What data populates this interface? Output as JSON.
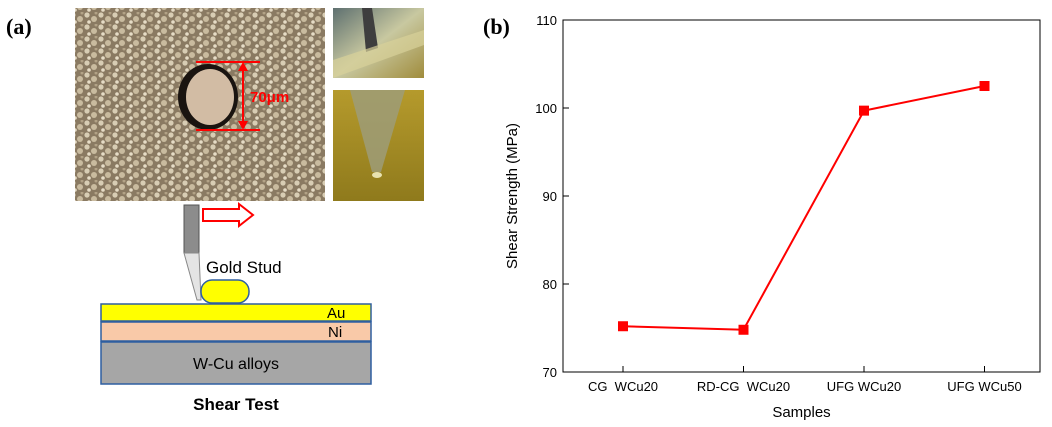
{
  "panel_a": {
    "label": "(a)",
    "measure_label": "70μm",
    "stud_label": "Gold Stud",
    "layers": [
      "Au",
      "Ni",
      "W-Cu alloys"
    ],
    "caption": "Shear Test",
    "colors": {
      "au": "#ffff00",
      "ni": "#f9c9a8",
      "base": "#a6a6a6",
      "measure": "#ff0000",
      "tool": "#8c8c8c"
    }
  },
  "panel_b": {
    "label": "(b)"
  },
  "chart_data": {
    "type": "line",
    "categories": [
      "CG  WCu20",
      "RD-CG  WCu20",
      "UFG WCu20",
      "UFG WCu50"
    ],
    "series": [
      {
        "name": "Shear Strength",
        "values": [
          75.2,
          74.8,
          99.7,
          102.5
        ],
        "color": "#ff0000"
      }
    ],
    "title": "",
    "xlabel": "Samples",
    "ylabel": "Shear Strength (MPa)",
    "ylim": [
      70,
      110
    ],
    "yticks": [
      70,
      80,
      90,
      100,
      110
    ],
    "grid": false
  }
}
